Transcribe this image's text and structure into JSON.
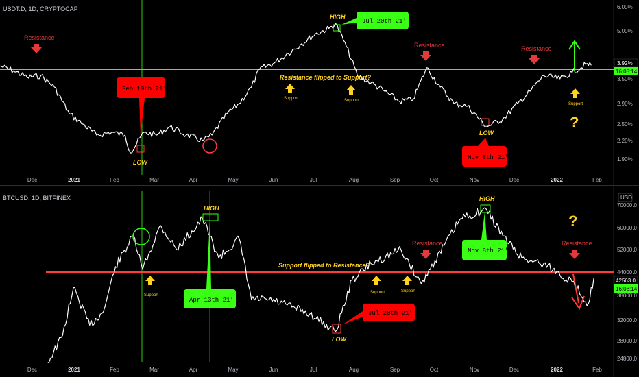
{
  "top": {
    "symbol_label": "USDT.D, 1D, CRYPTOCAP",
    "y_ticks": [
      "6.00%",
      "5.00%",
      "3.50%",
      "2.90%",
      "2.50%",
      "2.20%",
      "1.90%"
    ],
    "price_badge": "3.92%",
    "countdown": "16:08:14",
    "resistance_line_label": "Resistance flipped to Support?",
    "annotations": {
      "resistance_labels": [
        "Resistance",
        "Resistance",
        "Resistance"
      ],
      "support_labels": [
        "Support",
        "Support",
        "Support"
      ],
      "high_label": "HIGH",
      "low_labels": [
        "LOW",
        "LOW"
      ],
      "question": "?"
    },
    "callouts": {
      "green": "Jul 20th 21'",
      "red1": "Feb 19th 21'",
      "red2": "Nov 8th 21'"
    }
  },
  "bottom": {
    "symbol_label": "BTCUSD, 1D, BITFINEX",
    "currency": "USD",
    "y_ticks": [
      "70000.0",
      "60000.0",
      "52000.0",
      "44000.0",
      "38000.0",
      "32000.0",
      "28000.0",
      "24800.0"
    ],
    "price_badge": "42563.0",
    "countdown": "16:08:14",
    "support_line_label": "Support flipped to Resistance?",
    "annotations": {
      "resistance_labels": [
        "Resistance",
        "Resistance"
      ],
      "support_labels": [
        "Support",
        "Support",
        "Support"
      ],
      "high_labels": [
        "HIGH",
        "HIGH"
      ],
      "low_label": "LOW",
      "question": "?"
    },
    "callouts": {
      "green1": "Apr 13th 21'",
      "green2": "Nov 8th 21'",
      "red": "Jul 20th 21'"
    }
  },
  "x_ticks": [
    {
      "label": "Dec",
      "bold": false
    },
    {
      "label": "2021",
      "bold": true
    },
    {
      "label": "Feb",
      "bold": false
    },
    {
      "label": "Mar",
      "bold": false
    },
    {
      "label": "Apr",
      "bold": false
    },
    {
      "label": "May",
      "bold": false
    },
    {
      "label": "Jun",
      "bold": false
    },
    {
      "label": "Jul",
      "bold": false
    },
    {
      "label": "Aug",
      "bold": false
    },
    {
      "label": "Sep",
      "bold": false
    },
    {
      "label": "Oct",
      "bold": false
    },
    {
      "label": "Nov",
      "bold": false
    },
    {
      "label": "Dec",
      "bold": false
    },
    {
      "label": "2022",
      "bold": true
    },
    {
      "label": "Feb",
      "bold": false
    }
  ],
  "colors": {
    "background": "#000000",
    "line": "#ffffff",
    "green": "#39ff14",
    "red": "#ff3b30",
    "yellow": "#ffd21f",
    "annotation_red": "#e5383b"
  },
  "chart_data": [
    {
      "type": "line",
      "title": "USDT.D, 1D, CRYPTOCAP",
      "x_range": [
        "2020-11-15",
        "2022-02-08"
      ],
      "ylim": [
        1.8,
        6.1
      ],
      "series": [
        {
          "name": "",
          "x": [
            "2020-11-15",
            "2020-11-25",
            "2020-12-05",
            "2020-12-15",
            "2020-12-25",
            "2021-01-05",
            "2021-01-15",
            "2021-01-25",
            "2021-02-05",
            "2021-02-15",
            "2021-02-19",
            "2021-03-01",
            "2021-03-10",
            "2021-03-20",
            "2021-04-01",
            "2021-04-13",
            "2021-04-20",
            "2021-05-01",
            "2021-05-10",
            "2021-05-19",
            "2021-05-25",
            "2021-06-05",
            "2021-06-15",
            "2021-06-25",
            "2021-07-05",
            "2021-07-15",
            "2021-07-20",
            "2021-07-28",
            "2021-08-05",
            "2021-08-15",
            "2021-08-25",
            "2021-09-05",
            "2021-09-15",
            "2021-09-25",
            "2021-10-05",
            "2021-10-15",
            "2021-10-25",
            "2021-11-08",
            "2021-11-20",
            "2021-12-01",
            "2021-12-10",
            "2021-12-20",
            "2022-01-01",
            "2022-01-10",
            "2022-01-20",
            "2022-01-24"
          ],
          "values": [
            3.9,
            3.75,
            3.55,
            3.6,
            3.3,
            2.7,
            2.5,
            2.3,
            2.35,
            2.3,
            2.0,
            2.35,
            2.3,
            2.45,
            2.3,
            2.2,
            2.3,
            2.7,
            2.9,
            3.3,
            3.8,
            4.0,
            4.3,
            4.6,
            4.9,
            5.1,
            5.3,
            4.5,
            3.6,
            3.4,
            3.2,
            2.95,
            3.0,
            3.85,
            3.3,
            2.9,
            2.85,
            2.45,
            2.6,
            2.9,
            3.2,
            3.6,
            3.5,
            3.7,
            3.95,
            3.92
          ]
        }
      ]
    },
    {
      "type": "line",
      "title": "BTCUSD, 1D, BITFINEX",
      "x_range": [
        "2020-11-15",
        "2022-02-08"
      ],
      "ylim": [
        24000,
        73000
      ],
      "series": [
        {
          "name": "",
          "x": [
            "2020-12-20",
            "2020-12-31",
            "2021-01-08",
            "2021-01-20",
            "2021-01-30",
            "2021-02-08",
            "2021-02-21",
            "2021-02-28",
            "2021-03-13",
            "2021-03-25",
            "2021-04-13",
            "2021-04-25",
            "2021-05-10",
            "2021-05-19",
            "2021-06-01",
            "2021-06-20",
            "2021-07-01",
            "2021-07-20",
            "2021-08-01",
            "2021-08-15",
            "2021-09-06",
            "2021-09-21",
            "2021-10-01",
            "2021-10-20",
            "2021-11-08",
            "2021-11-20",
            "2021-12-04",
            "2021-12-20",
            "2022-01-10",
            "2022-01-22",
            "2022-01-26"
          ],
          "values": [
            24000,
            29000,
            40000,
            31000,
            34000,
            46000,
            57000,
            45000,
            61000,
            52000,
            64000,
            49000,
            56000,
            37000,
            37000,
            35000,
            33500,
            29800,
            42000,
            47000,
            52000,
            41000,
            48000,
            64000,
            68000,
            57000,
            49000,
            47000,
            41500,
            36000,
            42563
          ]
        }
      ]
    }
  ]
}
